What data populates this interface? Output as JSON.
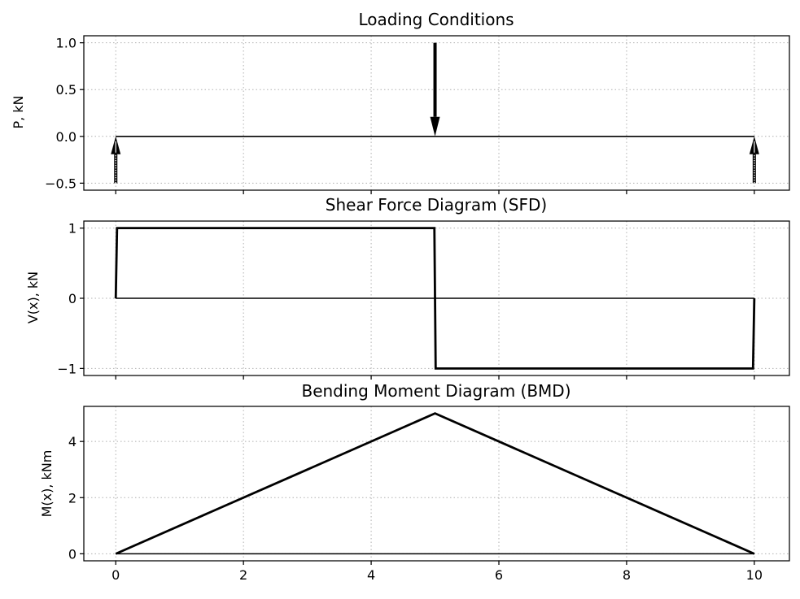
{
  "chart_data": [
    {
      "type": "line",
      "title": "Loading Conditions",
      "xlabel": "",
      "ylabel": "P, kN",
      "xlim": [
        -0.5,
        10.55
      ],
      "ylim": [
        -0.575,
        1.075
      ],
      "yticks": [
        -0.5,
        0.0,
        0.5,
        1.0
      ],
      "ytick_labels": [
        "−0.5",
        "0.0",
        "0.5",
        "1.0"
      ],
      "xticks": [
        0,
        2,
        4,
        6,
        8,
        10
      ],
      "show_xtick_labels": false,
      "grid": true,
      "beam": {
        "x": [
          0,
          10
        ],
        "y": [
          0,
          0
        ]
      },
      "loads": [
        {
          "x": 0,
          "magnitude": -0.5,
          "direction": "up",
          "style": "reaction"
        },
        {
          "x": 5,
          "magnitude": 1.0,
          "direction": "down",
          "style": "point-load"
        },
        {
          "x": 10,
          "magnitude": -0.5,
          "direction": "up",
          "style": "reaction"
        }
      ],
      "color": "#000000"
    },
    {
      "type": "line",
      "title": "Shear Force Diagram (SFD)",
      "xlabel": "",
      "ylabel": "V(x), kN",
      "xlim": [
        -0.5,
        10.55
      ],
      "ylim": [
        -1.1,
        1.1
      ],
      "yticks": [
        -1,
        0,
        1
      ],
      "ytick_labels": [
        "−1",
        "0",
        "1"
      ],
      "xticks": [
        0,
        2,
        4,
        6,
        8,
        10
      ],
      "show_xtick_labels": false,
      "grid": true,
      "series": [
        {
          "x": [
            0,
            0.01,
            0.02,
            4.99,
            5.01,
            9.98,
            9.99,
            10
          ],
          "y": [
            0,
            0.5,
            1,
            1,
            -1,
            -1,
            -0.5,
            0
          ]
        }
      ],
      "baseline": {
        "x": [
          0,
          10
        ],
        "y": [
          0,
          0
        ]
      },
      "color": "#000000"
    },
    {
      "type": "line",
      "title": "Bending Moment Diagram (BMD)",
      "xlabel": "",
      "ylabel": "M(x), kNm",
      "xlim": [
        -0.5,
        10.55
      ],
      "ylim": [
        -0.25,
        5.25
      ],
      "yticks": [
        0,
        2,
        4
      ],
      "ytick_labels": [
        "0",
        "2",
        "4"
      ],
      "xticks": [
        0,
        2,
        4,
        6,
        8,
        10
      ],
      "xtick_labels": [
        "0",
        "2",
        "4",
        "6",
        "8",
        "10"
      ],
      "show_xtick_labels": true,
      "grid": true,
      "series": [
        {
          "x": [
            0,
            5,
            10
          ],
          "y": [
            0,
            5,
            0
          ]
        }
      ],
      "baseline": {
        "x": [
          0,
          10
        ],
        "y": [
          0,
          0
        ]
      },
      "color": "#000000"
    }
  ]
}
